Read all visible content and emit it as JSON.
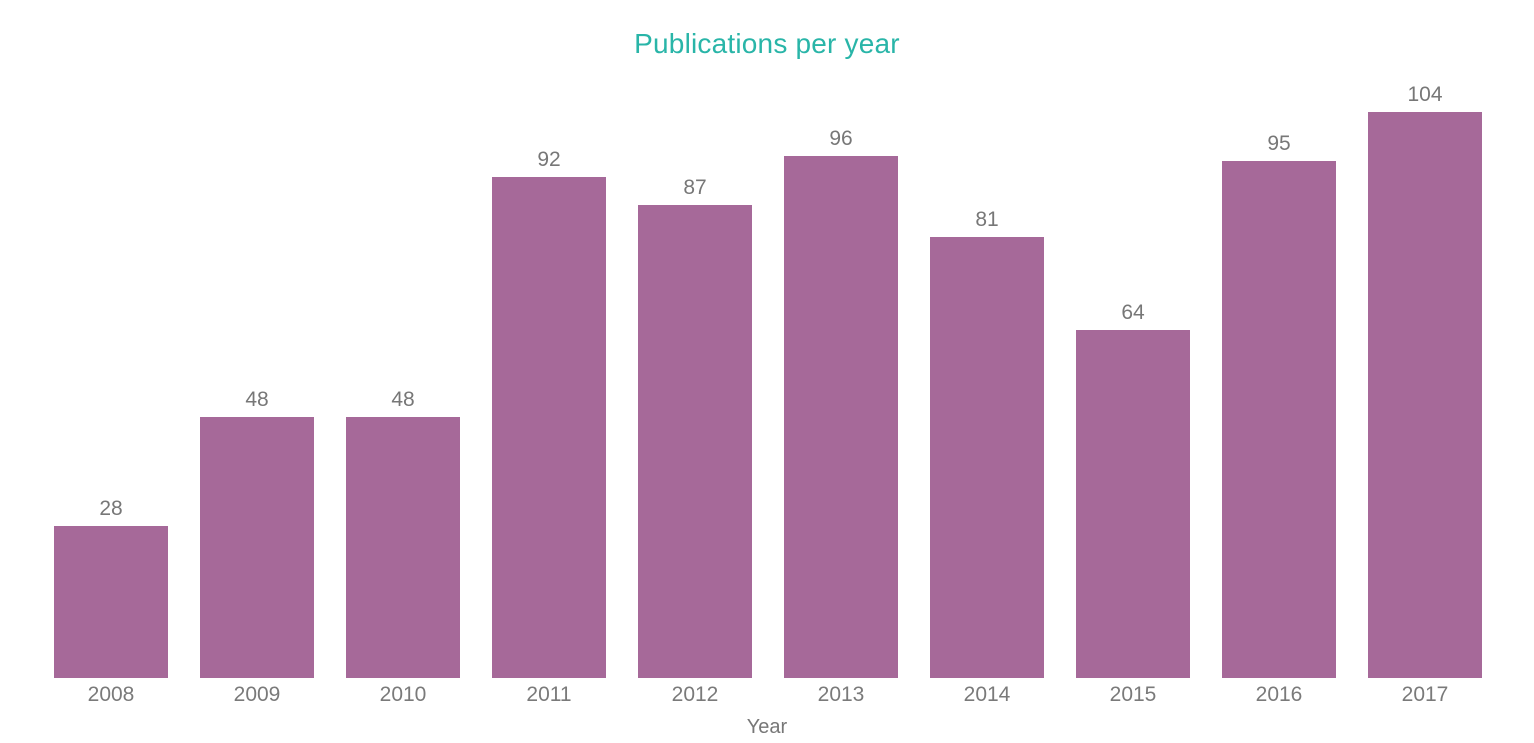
{
  "chart_data": {
    "type": "bar",
    "title": "Publications per year",
    "xlabel": "Year",
    "ylabel": "",
    "categories": [
      "2008",
      "2009",
      "2010",
      "2011",
      "2012",
      "2013",
      "2014",
      "2015",
      "2016",
      "2017"
    ],
    "values": [
      28,
      48,
      48,
      92,
      87,
      96,
      81,
      64,
      95,
      104
    ],
    "ylim": [
      0,
      104
    ],
    "grid": false,
    "legend": false,
    "data_labels": true,
    "colors": {
      "bar": "#A66999",
      "title": "#29B5A8",
      "data_label": "#777777",
      "axis_label": "#7A7A7A",
      "axis_title": "#777777",
      "background": "#FFFFFF"
    }
  }
}
